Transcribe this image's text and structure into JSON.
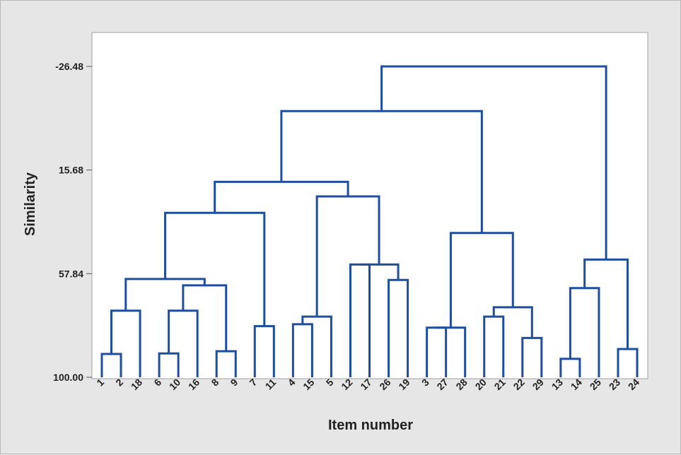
{
  "chart_data": {
    "type": "dendrogram",
    "xlabel": "Item number",
    "ylabel": "Similarity",
    "yticks": [
      -26.48,
      15.68,
      57.84,
      100.0
    ],
    "ytick_labels": [
      "-26.48",
      "15.68",
      "57.84",
      "100.00"
    ],
    "ylim": [
      -26.48,
      100
    ],
    "leaf_order": [
      "1",
      "2",
      "18",
      "6",
      "10",
      "16",
      "8",
      "9",
      "7",
      "11",
      "4",
      "15",
      "5",
      "12",
      "17",
      "26",
      "19",
      "3",
      "27",
      "28",
      "20",
      "21",
      "22",
      "29",
      "13",
      "14",
      "25",
      "23",
      "24"
    ],
    "line_color": "#1f4e9e",
    "merges": [
      {
        "id": "m1",
        "left": "1",
        "right": "2",
        "similarity": 90.5
      },
      {
        "id": "m2",
        "left": "m1",
        "right": "18",
        "similarity": 72.9
      },
      {
        "id": "m3",
        "left": "6",
        "right": "10",
        "similarity": 90.3
      },
      {
        "id": "m4",
        "left": "m3",
        "right": "16",
        "similarity": 72.9
      },
      {
        "id": "m5",
        "left": "8",
        "right": "9",
        "similarity": 89.4
      },
      {
        "id": "m6",
        "left": "m4",
        "right": "m5",
        "similarity": 62.6
      },
      {
        "id": "m7",
        "left": "m2",
        "right": "m6",
        "similarity": 60.0
      },
      {
        "id": "m8",
        "left": "7",
        "right": "11",
        "similarity": 79.2
      },
      {
        "id": "m9",
        "left": "m7",
        "right": "m8",
        "similarity": 33.1
      },
      {
        "id": "m10",
        "left": "4",
        "right": "15",
        "similarity": 78.4
      },
      {
        "id": "m11",
        "left": "m10",
        "right": "5",
        "similarity": 75.3
      },
      {
        "id": "m12",
        "left": "12",
        "right": "17",
        "similarity": 54.1
      },
      {
        "id": "m13",
        "left": "26",
        "right": "19",
        "similarity": 60.4
      },
      {
        "id": "m14",
        "left": "m12",
        "right": "m13",
        "similarity": 54.1
      },
      {
        "id": "m15",
        "left": "m11",
        "right": "m14",
        "similarity": 26.4
      },
      {
        "id": "m16",
        "left": "m9",
        "right": "m15",
        "similarity": 20.5
      },
      {
        "id": "m17",
        "left": "3",
        "right": "27",
        "similarity": 79.8
      },
      {
        "id": "m18",
        "left": "m17",
        "right": "28",
        "similarity": 79.8
      },
      {
        "id": "m19",
        "left": "20",
        "right": "21",
        "similarity": 75.3
      },
      {
        "id": "m20",
        "left": "22",
        "right": "29",
        "similarity": 84.0
      },
      {
        "id": "m21",
        "left": "m19",
        "right": "m20",
        "similarity": 71.5
      },
      {
        "id": "m22",
        "left": "m18",
        "right": "m21",
        "similarity": 41.3
      },
      {
        "id": "m23",
        "left": "m16",
        "right": "m22",
        "similarity": -8.3
      },
      {
        "id": "m24",
        "left": "13",
        "right": "14",
        "similarity": 92.5
      },
      {
        "id": "m25",
        "left": "m24",
        "right": "25",
        "similarity": 63.7
      },
      {
        "id": "m26",
        "left": "23",
        "right": "24",
        "similarity": 88.5
      },
      {
        "id": "m27",
        "left": "m25",
        "right": "m26",
        "similarity": 52.1
      },
      {
        "id": "m28",
        "left": "m23",
        "right": "m27",
        "similarity": -26.48
      }
    ]
  }
}
